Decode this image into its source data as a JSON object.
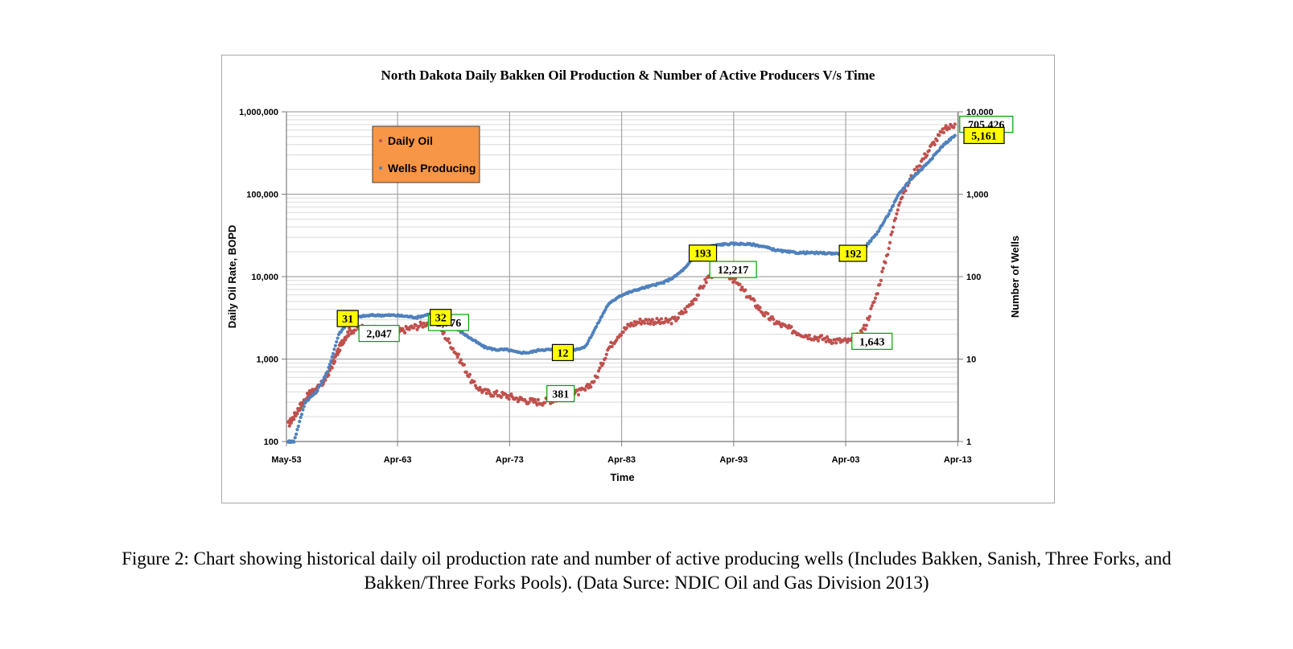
{
  "chart_data": {
    "type": "scatter",
    "title": "North Dakota Daily Bakken Oil Production & Number of Active Producers V/s Time",
    "xlabel": "Time",
    "ylabel": "Daily Oil Rate, BOPD",
    "y2label": "Number of Wells",
    "x_ticks": [
      "May-53",
      "Apr-63",
      "Apr-73",
      "Apr-83",
      "Apr-93",
      "Apr-03",
      "Apr-13"
    ],
    "x_range": [
      1953.33,
      2013.3
    ],
    "y_scale": "log",
    "y_ticks": [
      "100",
      "1,000",
      "10,000",
      "100,000",
      "1,000,000"
    ],
    "ylim": [
      100,
      1000000
    ],
    "y2_scale": "log",
    "y2_ticks": [
      "1",
      "10",
      "100",
      "1,000",
      "10,000"
    ],
    "y2lim": [
      1,
      10000
    ],
    "grid": true,
    "legend_position": "top-left",
    "legend": {
      "background": "#f79646"
    },
    "series": [
      {
        "name": "Daily Oil",
        "axis": "left",
        "color": "#c0504d",
        "points": [
          [
            1953.5,
            160
          ],
          [
            1954.0,
            200
          ],
          [
            1954.5,
            260
          ],
          [
            1955.0,
            320
          ],
          [
            1955.5,
            400
          ],
          [
            1956.0,
            420
          ],
          [
            1956.5,
            500
          ],
          [
            1957.0,
            650
          ],
          [
            1957.5,
            900
          ],
          [
            1958.0,
            1300
          ],
          [
            1958.5,
            1800
          ],
          [
            1959.0,
            2200
          ],
          [
            1960.0,
            2400
          ],
          [
            1961.0,
            2300
          ],
          [
            1962.0,
            2200
          ],
          [
            1963.0,
            2047
          ],
          [
            1964.0,
            2300
          ],
          [
            1965.0,
            2500
          ],
          [
            1966.0,
            2776
          ],
          [
            1967.0,
            2400
          ],
          [
            1968.0,
            1500
          ],
          [
            1969.0,
            900
          ],
          [
            1970.0,
            500
          ],
          [
            1971.0,
            400
          ],
          [
            1972.0,
            380
          ],
          [
            1973.0,
            360
          ],
          [
            1974.0,
            330
          ],
          [
            1975.0,
            310
          ],
          [
            1976.0,
            300
          ],
          [
            1977.0,
            320
          ],
          [
            1978.0,
            340
          ],
          [
            1979.0,
            381
          ],
          [
            1980.0,
            420
          ],
          [
            1981.0,
            600
          ],
          [
            1982.0,
            1300
          ],
          [
            1983.0,
            2000
          ],
          [
            1984.0,
            2600
          ],
          [
            1985.0,
            2900
          ],
          [
            1986.0,
            2900
          ],
          [
            1987.0,
            2800
          ],
          [
            1988.0,
            3000
          ],
          [
            1989.0,
            4000
          ],
          [
            1990.0,
            6000
          ],
          [
            1991.0,
            10000
          ],
          [
            1992.0,
            12217
          ],
          [
            1993.0,
            10000
          ],
          [
            1994.0,
            7000
          ],
          [
            1995.0,
            5000
          ],
          [
            1996.0,
            3500
          ],
          [
            1997.0,
            2800
          ],
          [
            1998.0,
            2400
          ],
          [
            1999.0,
            2100
          ],
          [
            2000.0,
            1900
          ],
          [
            2001.0,
            1800
          ],
          [
            2002.0,
            1700
          ],
          [
            2003.0,
            1650
          ],
          [
            2004.0,
            1643
          ],
          [
            2005.0,
            2500
          ],
          [
            2006.0,
            6000
          ],
          [
            2007.0,
            20000
          ],
          [
            2008.0,
            80000
          ],
          [
            2009.0,
            150000
          ],
          [
            2010.0,
            250000
          ],
          [
            2011.0,
            400000
          ],
          [
            2012.0,
            600000
          ],
          [
            2013.0,
            705426
          ]
        ]
      },
      {
        "name": "Wells Producing",
        "axis": "right",
        "color": "#4f81bd",
        "points": [
          [
            1953.5,
            1
          ],
          [
            1954.0,
            1
          ],
          [
            1955.0,
            3
          ],
          [
            1956.0,
            4
          ],
          [
            1957.0,
            7
          ],
          [
            1958.0,
            20
          ],
          [
            1959.0,
            30
          ],
          [
            1960.0,
            33
          ],
          [
            1961.0,
            34
          ],
          [
            1962.0,
            34
          ],
          [
            1963.0,
            34
          ],
          [
            1964.0,
            33
          ],
          [
            1965.0,
            32
          ],
          [
            1966.0,
            35
          ],
          [
            1967.0,
            32
          ],
          [
            1968.0,
            26
          ],
          [
            1969.0,
            21
          ],
          [
            1970.0,
            17
          ],
          [
            1971.0,
            14
          ],
          [
            1972.0,
            13
          ],
          [
            1973.0,
            13
          ],
          [
            1974.0,
            12
          ],
          [
            1975.0,
            12
          ],
          [
            1976.0,
            13
          ],
          [
            1977.0,
            13
          ],
          [
            1978.0,
            13
          ],
          [
            1979.0,
            13
          ],
          [
            1980.0,
            14
          ],
          [
            1981.0,
            25
          ],
          [
            1982.0,
            45
          ],
          [
            1983.0,
            58
          ],
          [
            1984.0,
            65
          ],
          [
            1985.0,
            72
          ],
          [
            1986.0,
            78
          ],
          [
            1987.0,
            85
          ],
          [
            1988.0,
            100
          ],
          [
            1989.0,
            130
          ],
          [
            1990.0,
            193
          ],
          [
            1991.0,
            230
          ],
          [
            1992.0,
            245
          ],
          [
            1993.0,
            250
          ],
          [
            1994.0,
            250
          ],
          [
            1995.0,
            245
          ],
          [
            1996.0,
            230
          ],
          [
            1997.0,
            210
          ],
          [
            1998.0,
            200
          ],
          [
            1999.0,
            195
          ],
          [
            2000.0,
            195
          ],
          [
            2001.0,
            193
          ],
          [
            2002.0,
            192
          ],
          [
            2003.0,
            190
          ],
          [
            2004.0,
            192
          ],
          [
            2005.0,
            230
          ],
          [
            2006.0,
            330
          ],
          [
            2007.0,
            550
          ],
          [
            2008.0,
            1000
          ],
          [
            2009.0,
            1500
          ],
          [
            2010.0,
            2000
          ],
          [
            2011.0,
            2800
          ],
          [
            2012.0,
            4000
          ],
          [
            2013.0,
            5161
          ]
        ]
      }
    ],
    "annotations": [
      {
        "text": "31",
        "x": 1958.8,
        "y": 31,
        "axis": "right",
        "style": "yellow"
      },
      {
        "text": "2,047",
        "x": 1961.6,
        "y": 2047,
        "axis": "left",
        "style": "green"
      },
      {
        "text": "2,776",
        "x": 1967.8,
        "y": 2776,
        "axis": "left",
        "style": "green"
      },
      {
        "text": "32",
        "x": 1967.1,
        "y": 32,
        "axis": "right",
        "style": "yellow"
      },
      {
        "text": "12",
        "x": 1978.0,
        "y": 12,
        "axis": "right",
        "style": "yellow"
      },
      {
        "text": "381",
        "x": 1977.8,
        "y": 381,
        "axis": "left",
        "style": "green"
      },
      {
        "text": "193",
        "x": 1990.5,
        "y": 193,
        "axis": "right",
        "style": "yellow"
      },
      {
        "text": "12,217",
        "x": 1993.2,
        "y": 12217,
        "axis": "left",
        "style": "green"
      },
      {
        "text": "192",
        "x": 2003.9,
        "y": 192,
        "axis": "right",
        "style": "yellow"
      },
      {
        "text": "1,643",
        "x": 2005.6,
        "y": 1643,
        "axis": "left",
        "style": "green"
      },
      {
        "text": "705,426",
        "x": 2015.8,
        "y": 705426,
        "axis": "left",
        "style": "green"
      },
      {
        "text": "5,161",
        "x": 2015.6,
        "y": 5161,
        "axis": "right",
        "style": "yellow"
      }
    ]
  },
  "caption": {
    "line1": "Figure 2: Chart showing historical daily oil production rate and number of active producing wells (Includes Bakken, Sanish, Three Forks, and",
    "line2": "Bakken/Three Forks Pools). (Data Surce: NDIC Oil and Gas Division 2013)"
  }
}
